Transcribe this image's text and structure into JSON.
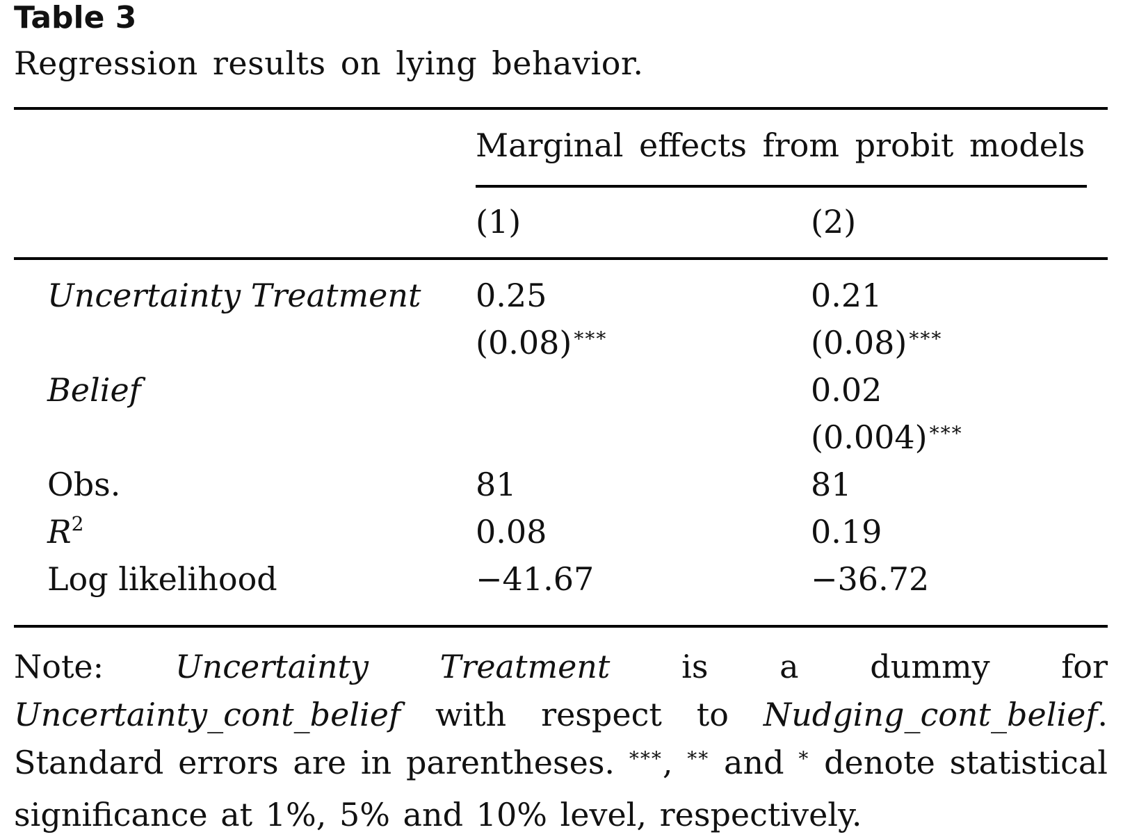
{
  "table": {
    "label": "Table 3",
    "caption": "Regression results on lying behavior.",
    "group_header": "Marginal effects from probit models",
    "columns": [
      "(1)",
      "(2)"
    ],
    "rows": {
      "uncertainty": {
        "label": "Uncertainty Treatment",
        "c1_coef": "0.25",
        "c1_se": "(0.08)",
        "c1_stars": "***",
        "c2_coef": "0.21",
        "c2_se": "(0.08)",
        "c2_stars": "***"
      },
      "belief": {
        "label": "Belief",
        "c1_coef": "",
        "c1_se": "",
        "c2_coef": "0.02",
        "c2_se": "(0.004)",
        "c2_stars": "***"
      },
      "obs": {
        "label": "Obs.",
        "c1": "81",
        "c2": "81"
      },
      "r2": {
        "label": "R",
        "label_sup": "2",
        "c1": "0.08",
        "c2": "0.19"
      },
      "loglik": {
        "label": "Log likelihood",
        "c1": "−41.67",
        "c2": "−36.72"
      }
    }
  },
  "note": {
    "prefix": "Note: ",
    "var1": "Uncertainty Treatment",
    "mid1": " is a dummy for ",
    "var2": "Uncertainty_cont_belief",
    "mid2": " with respect to ",
    "var3": "Nudging_cont_belief",
    "mid3": ". Standard errors are in parentheses. ",
    "s3": "***",
    "comma": ", ",
    "s2": "**",
    "and": " and ",
    "s1": "*",
    "tail": " denote statistical significance at 1%, 5% and 10% level, respectively."
  }
}
